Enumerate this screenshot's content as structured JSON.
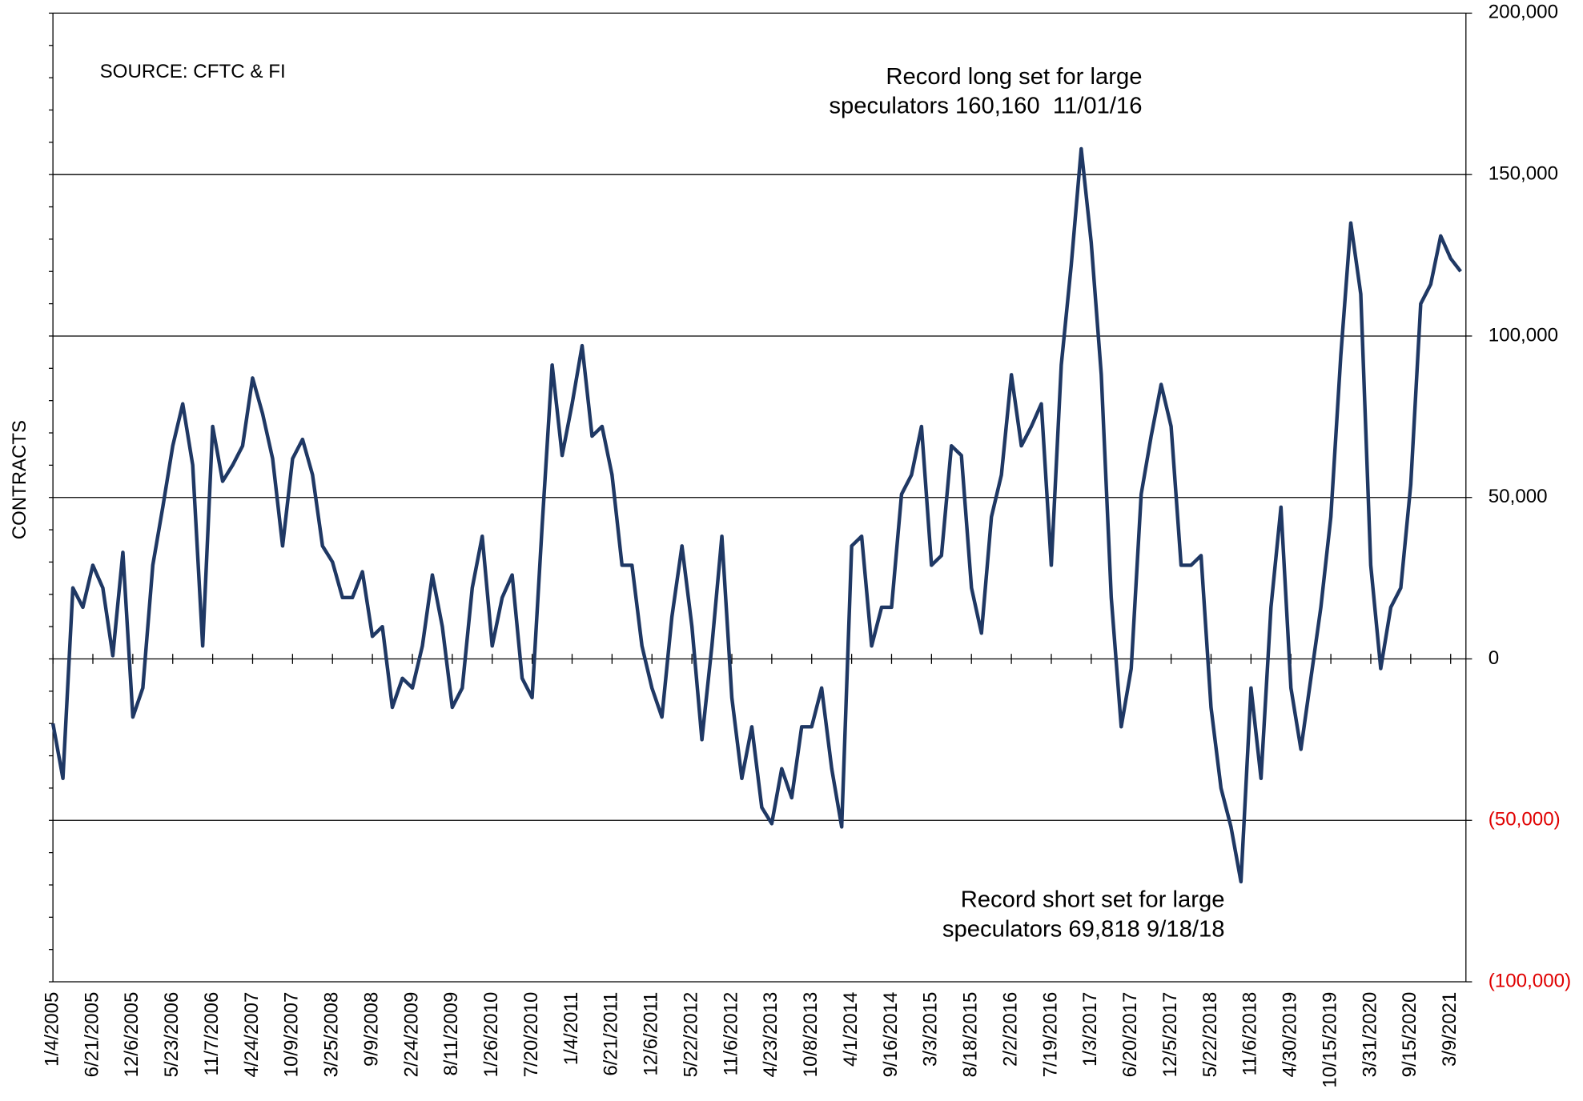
{
  "chart_data": {
    "type": "line",
    "y_axis_label": "CONTRACTS",
    "annotations": [
      "SOURCE: CFTC & FI",
      "Record long set for large",
      "speculators 160,160  11/01/16",
      "Record short set for large",
      "speculators 69,818 9/18/18"
    ],
    "categories": [
      "1/4/2005",
      null,
      null,
      null,
      "6/21/2005",
      null,
      null,
      null,
      "12/6/2005",
      null,
      null,
      null,
      "5/23/2006",
      null,
      null,
      null,
      "11/7/2006",
      null,
      null,
      null,
      "4/24/2007",
      null,
      null,
      null,
      "10/9/2007",
      null,
      null,
      null,
      "3/25/2008",
      null,
      null,
      null,
      "9/9/2008",
      null,
      null,
      null,
      "2/24/2009",
      null,
      null,
      null,
      "8/11/2009",
      null,
      null,
      null,
      "1/26/2010",
      null,
      null,
      null,
      "7/20/2010",
      null,
      null,
      null,
      "1/4/2011",
      null,
      null,
      null,
      "6/21/2011",
      null,
      null,
      null,
      "12/6/2011",
      null,
      null,
      null,
      "5/22/2012",
      null,
      null,
      null,
      "11/6/2012",
      null,
      null,
      null,
      "4/23/2013",
      null,
      null,
      null,
      "10/8/2013",
      null,
      null,
      null,
      "4/1/2014",
      null,
      null,
      null,
      "9/16/2014",
      null,
      null,
      null,
      "3/3/2015",
      null,
      null,
      null,
      "8/18/2015",
      null,
      null,
      null,
      "2/2/2016",
      null,
      null,
      null,
      "7/19/2016",
      null,
      null,
      null,
      "1/3/2017",
      null,
      null,
      null,
      "6/20/2017",
      null,
      null,
      null,
      "12/5/2017",
      null,
      null,
      null,
      "5/22/2018",
      null,
      null,
      null,
      "11/6/2018",
      null,
      null,
      null,
      "4/30/2019",
      null,
      null,
      null,
      "10/15/2019",
      null,
      null,
      null,
      "3/31/2020",
      null,
      null,
      null,
      "9/15/2020",
      null,
      null,
      null,
      "3/9/2021",
      null
    ],
    "series": [
      {
        "color": "#1f3864",
        "values": [
          -20000,
          -37000,
          22000,
          16000,
          29000,
          22000,
          1000,
          33000,
          -18000,
          -9000,
          29000,
          47000,
          66000,
          79000,
          60000,
          4000,
          72000,
          55000,
          60000,
          66000,
          87000,
          76000,
          62000,
          35000,
          62000,
          68000,
          57000,
          35000,
          30000,
          19000,
          19000,
          27000,
          7000,
          10000,
          -15000,
          -6000,
          -9000,
          4000,
          26000,
          10000,
          -15000,
          -9000,
          22000,
          38000,
          4000,
          19000,
          26000,
          -6000,
          -12000,
          41000,
          91000,
          63000,
          79000,
          97000,
          69000,
          72000,
          57000,
          29000,
          29000,
          4000,
          -9000,
          -18000,
          13000,
          35000,
          10000,
          -25000,
          4000,
          38000,
          -12000,
          -37000,
          -21000,
          -46000,
          -51000,
          -34000,
          -43000,
          -21000,
          -21000,
          -9000,
          -34000,
          -52000,
          35000,
          38000,
          4000,
          16000,
          16000,
          51000,
          57000,
          72000,
          29000,
          32000,
          66000,
          63000,
          22000,
          8000,
          44000,
          57000,
          88000,
          66000,
          72000,
          79000,
          29000,
          91000,
          122000,
          158000,
          129000,
          88000,
          19000,
          -21000,
          -3000,
          51000,
          69000,
          85000,
          72000,
          29000,
          29000,
          32000,
          -15000,
          -40000,
          -52000,
          -69000,
          -9000,
          -37000,
          16000,
          47000,
          -9000,
          -28000,
          -6000,
          16000,
          44000,
          94000,
          135000,
          113000,
          29000,
          -3000,
          16000,
          22000,
          54000,
          110000,
          116000,
          131000,
          124000,
          120000
        ]
      }
    ],
    "ylim": [
      -100000,
      200000
    ],
    "yticks": [
      {
        "value": -100000,
        "label": "(100,000)"
      },
      {
        "value": -50000,
        "label": "(50,000)"
      },
      0,
      {
        "value": 50000,
        "label": "50,000"
      },
      {
        "value": 100000,
        "label": "100,000"
      },
      {
        "value": 150000,
        "label": "150,000"
      },
      {
        "value": 200000,
        "label": "200,000"
      }
    ],
    "negative_tick_color": "#e00000",
    "grid": true
  }
}
